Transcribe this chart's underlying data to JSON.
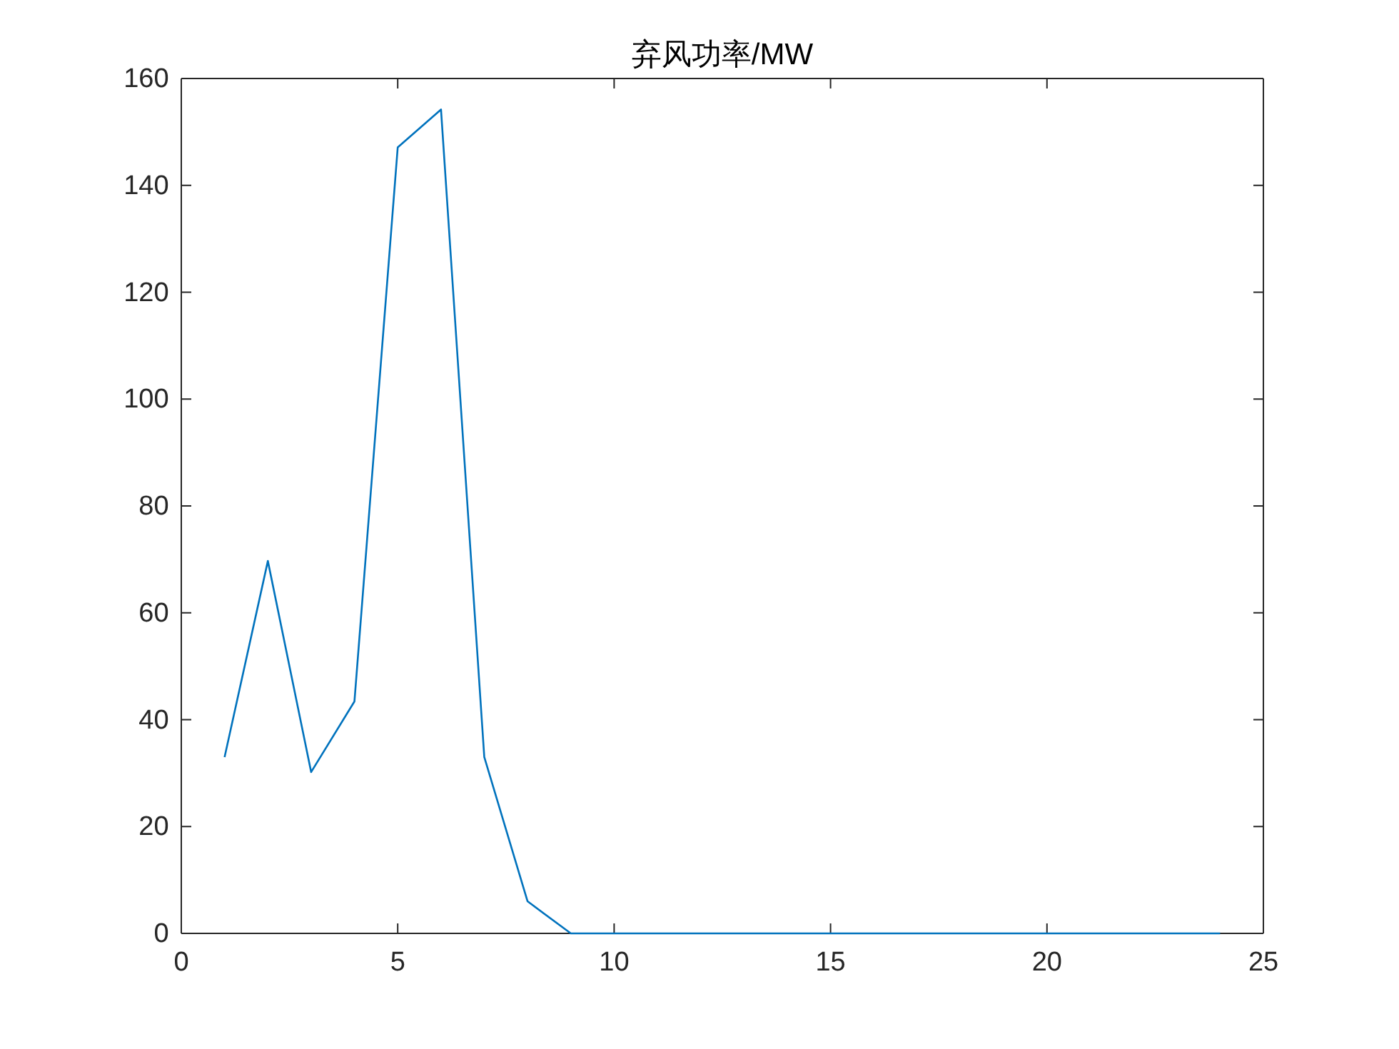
{
  "chart_data": {
    "type": "line",
    "title": "弃风功率/MW",
    "x": [
      1,
      2,
      3,
      4,
      5,
      6,
      7,
      8,
      9,
      10,
      11,
      12,
      13,
      14,
      15,
      16,
      17,
      18,
      19,
      20,
      21,
      22,
      23,
      24
    ],
    "series": [
      {
        "color": "#0072bd",
        "values": [
          33.0,
          69.7,
          30.2,
          43.4,
          147.1,
          154.2,
          33.0,
          6.0,
          0,
          0,
          0,
          0,
          0,
          0,
          0,
          0,
          0,
          0,
          0,
          0,
          0,
          0,
          0,
          0
        ]
      }
    ],
    "xlim": [
      0,
      25
    ],
    "xticks": [
      0,
      5,
      10,
      15,
      20,
      25
    ],
    "ylim": [
      0,
      160
    ],
    "yticks": [
      0,
      20,
      40,
      60,
      80,
      100,
      120,
      140,
      160
    ],
    "grid": false,
    "marker": "none",
    "line_style": "solid"
  }
}
